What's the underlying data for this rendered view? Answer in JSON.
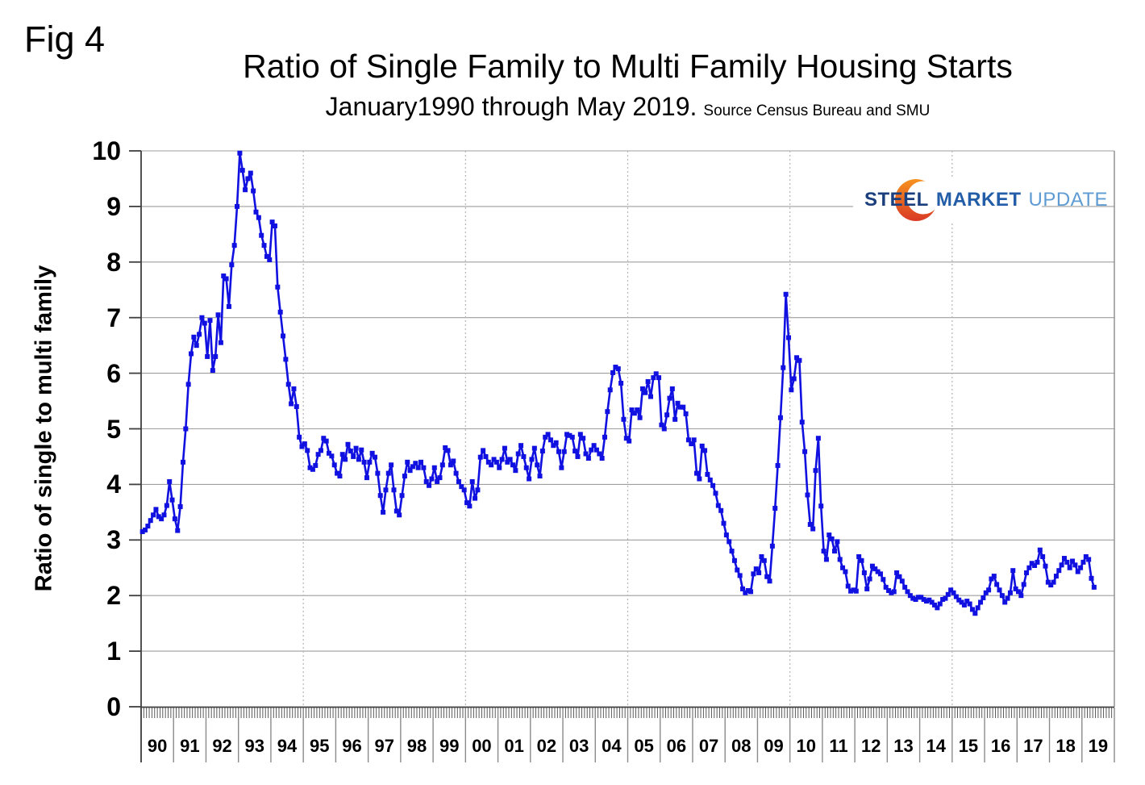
{
  "fig_label": "Fig 4",
  "title": "Ratio of Single Family to Multi Family Housing Starts",
  "subtitle": "January1990 through May 2019.",
  "source_note": "Source Census Bureau and SMU",
  "y_axis_title": "Ratio of single to multi family",
  "logo": {
    "word1": "STEEL",
    "word2": "MARKET",
    "word3": "UPDATE",
    "crescent_color_top": "#f6921e",
    "crescent_color_bottom": "#d93a26"
  },
  "chart_data": {
    "type": "line",
    "title": "Ratio of Single Family to Multi Family Housing Starts",
    "subtitle": "January1990 through May 2019. Source Census Bureau and SMU",
    "xlabel": "",
    "ylabel": "Ratio of single to multi family",
    "ylim": [
      0,
      10
    ],
    "y_ticks": [
      "0",
      "1",
      "2",
      "3",
      "4",
      "5",
      "6",
      "7",
      "8",
      "9",
      "10"
    ],
    "x_tick_labels": [
      "90",
      "91",
      "92",
      "93",
      "94",
      "95",
      "96",
      "97",
      "98",
      "99",
      "00",
      "01",
      "02",
      "03",
      "04",
      "05",
      "06",
      "07",
      "08",
      "09",
      "10",
      "11",
      "12",
      "13",
      "14",
      "15",
      "16",
      "17",
      "18",
      "19"
    ],
    "grid": "horizontal solid at integers; vertical dotted every 5 years (95,00,05,10,15)",
    "legend": "none",
    "line_color": "#1010e0",
    "marker": "square",
    "series": [
      {
        "name": "Single family to multi family housing starts ratio",
        "start": "1990-01",
        "end": "2019-05",
        "frequency": "monthly",
        "values": [
          3.15,
          3.18,
          3.25,
          3.35,
          3.45,
          3.55,
          3.42,
          3.38,
          3.45,
          3.62,
          4.05,
          3.72,
          3.38,
          3.17,
          3.6,
          4.4,
          5.0,
          5.8,
          6.35,
          6.65,
          6.5,
          6.7,
          7.0,
          6.9,
          6.3,
          6.95,
          6.05,
          6.3,
          7.05,
          6.55,
          7.75,
          7.7,
          7.2,
          7.95,
          8.3,
          9.0,
          9.96,
          9.65,
          9.3,
          9.5,
          9.6,
          9.28,
          8.9,
          8.8,
          8.48,
          8.3,
          8.1,
          8.04,
          8.72,
          8.65,
          7.55,
          7.1,
          6.67,
          6.25,
          5.8,
          5.45,
          5.72,
          5.4,
          4.85,
          4.68,
          4.73,
          4.61,
          4.3,
          4.27,
          4.34,
          4.54,
          4.61,
          4.83,
          4.78,
          4.56,
          4.51,
          4.35,
          4.2,
          4.15,
          4.54,
          4.45,
          4.72,
          4.6,
          4.5,
          4.65,
          4.45,
          4.62,
          4.4,
          4.12,
          4.4,
          4.56,
          4.49,
          4.2,
          3.8,
          3.5,
          3.9,
          4.2,
          4.35,
          3.9,
          3.52,
          3.45,
          3.8,
          4.15,
          4.4,
          4.25,
          4.32,
          4.38,
          4.3,
          4.4,
          4.3,
          4.05,
          3.98,
          4.1,
          4.3,
          4.05,
          4.12,
          4.35,
          4.66,
          4.61,
          4.35,
          4.42,
          4.2,
          4.05,
          3.96,
          3.9,
          3.67,
          3.61,
          4.05,
          3.75,
          3.9,
          4.49,
          4.61,
          4.5,
          4.4,
          4.35,
          4.45,
          4.4,
          4.3,
          4.45,
          4.65,
          4.4,
          4.45,
          4.35,
          4.25,
          4.55,
          4.7,
          4.5,
          4.3,
          4.1,
          4.45,
          4.65,
          4.35,
          4.15,
          4.6,
          4.85,
          4.9,
          4.8,
          4.7,
          4.75,
          4.59,
          4.3,
          4.59,
          4.9,
          4.88,
          4.85,
          4.6,
          4.5,
          4.9,
          4.83,
          4.55,
          4.47,
          4.62,
          4.7,
          4.62,
          4.55,
          4.47,
          4.85,
          5.31,
          5.7,
          6.01,
          6.11,
          6.08,
          5.82,
          5.17,
          4.83,
          4.78,
          5.34,
          5.28,
          5.34,
          5.2,
          5.72,
          5.65,
          5.85,
          5.58,
          5.92,
          5.99,
          5.92,
          5.07,
          5.0,
          5.25,
          5.55,
          5.72,
          5.17,
          5.46,
          5.39,
          5.39,
          5.27,
          4.8,
          4.73,
          4.8,
          4.2,
          4.1,
          4.69,
          4.61,
          4.18,
          4.08,
          3.98,
          3.84,
          3.62,
          3.53,
          3.3,
          3.09,
          2.97,
          2.8,
          2.63,
          2.46,
          2.36,
          2.12,
          2.05,
          2.09,
          2.07,
          2.39,
          2.48,
          2.41,
          2.7,
          2.63,
          2.34,
          2.26,
          2.89,
          3.57,
          4.34,
          5.2,
          6.1,
          7.42,
          6.64,
          5.7,
          5.9,
          6.28,
          6.23,
          5.12,
          4.59,
          3.81,
          3.28,
          3.2,
          4.25,
          4.83,
          3.61,
          2.8,
          2.65,
          3.09,
          3.02,
          2.8,
          2.97,
          2.65,
          2.5,
          2.43,
          2.17,
          2.08,
          2.1,
          2.08,
          2.7,
          2.63,
          2.41,
          2.12,
          2.3,
          2.53,
          2.48,
          2.43,
          2.39,
          2.29,
          2.15,
          2.09,
          2.05,
          2.07,
          2.41,
          2.34,
          2.26,
          2.15,
          2.07,
          2.0,
          1.95,
          1.93,
          1.97,
          1.97,
          1.93,
          1.9,
          1.92,
          1.88,
          1.83,
          1.78,
          1.85,
          1.93,
          1.95,
          2.02,
          2.1,
          2.05,
          1.98,
          1.92,
          1.88,
          1.83,
          1.9,
          1.85,
          1.75,
          1.68,
          1.78,
          1.88,
          1.96,
          2.05,
          2.1,
          2.3,
          2.35,
          2.2,
          2.1,
          2.0,
          1.88,
          1.95,
          2.05,
          2.45,
          2.12,
          2.07,
          2.0,
          2.2,
          2.41,
          2.5,
          2.58,
          2.54,
          2.6,
          2.82,
          2.7,
          2.53,
          2.24,
          2.19,
          2.24,
          2.35,
          2.45,
          2.55,
          2.67,
          2.6,
          2.5,
          2.62,
          2.55,
          2.43,
          2.5,
          2.6,
          2.7,
          2.65,
          2.31,
          2.15
        ]
      }
    ]
  }
}
